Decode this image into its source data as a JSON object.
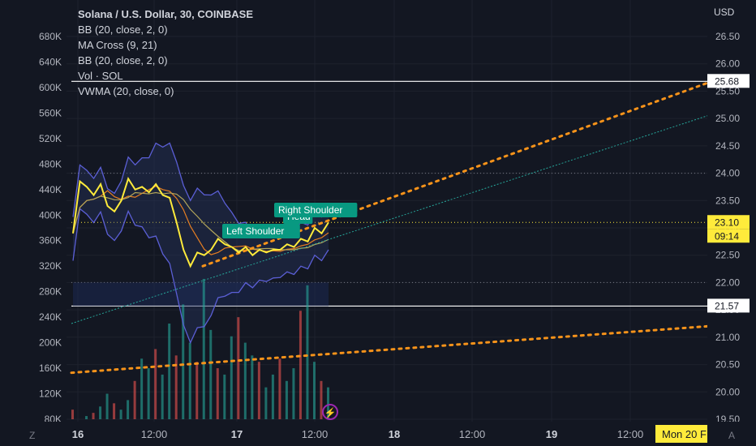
{
  "legend": {
    "title": "Solana / U.S. Dollar, 30, COINBASE",
    "indicators": [
      "BB (20, close, 2, 0)",
      "MA Cross (9, 21)",
      "BB (20, close, 2, 0)",
      "Vol · SOL",
      "VWMA (20, close, 0)"
    ]
  },
  "price_axis": {
    "currency": "USD",
    "ticks": [
      "26.50",
      "26.00",
      "25.50",
      "25.00",
      "24.50",
      "24.00",
      "23.50",
      "23.00",
      "22.50",
      "22.00",
      "21.50",
      "21.00",
      "20.50",
      "20.00",
      "19.50"
    ],
    "resistance_label": "25.68",
    "current_price_label": "23.10",
    "countdown_label": "09:14",
    "support_label": "21.57"
  },
  "volume_axis": {
    "ticks": [
      "680K",
      "640K",
      "600K",
      "560K",
      "520K",
      "480K",
      "440K",
      "400K",
      "360K",
      "320K",
      "280K",
      "240K",
      "200K",
      "160K",
      "120K",
      "80K"
    ]
  },
  "time_axis": {
    "ticks": [
      "16",
      "12:00",
      "17",
      "12:00",
      "18",
      "12:00",
      "19",
      "12:00"
    ],
    "current_date_label": "Mon 20 F"
  },
  "annotations": {
    "left_shoulder": "Left Shoulder",
    "right_shoulder": "Right Shoulder",
    "head": "Head"
  },
  "bottom_icons": {
    "left": "Z",
    "right": "A"
  },
  "colors": {
    "background": "#131722",
    "price_line": "#ffeb3b",
    "bollinger": "#5b5fd6",
    "trend_dotted": "#f7931a",
    "annotation": "#089981",
    "volume_up": "#26a69a",
    "volume_down": "#ef5350"
  },
  "chart_data": {
    "type": "line",
    "symbol": "SOLUSD",
    "price": [
      22.9,
      23.85,
      23.75,
      23.6,
      23.8,
      23.4,
      23.3,
      23.5,
      23.9,
      23.7,
      23.75,
      23.65,
      23.8,
      23.6,
      23.55,
      23.1,
      22.6,
      22.3,
      22.55,
      22.5,
      22.6,
      22.8,
      22.7,
      22.65,
      22.55,
      22.65,
      22.5,
      22.6,
      22.55,
      22.6,
      22.6,
      22.7,
      22.65,
      22.8,
      22.75,
      23.0,
      22.9,
      23.1
    ],
    "volume": [
      95,
      80,
      85,
      90,
      100,
      120,
      105,
      95,
      110,
      140,
      175,
      160,
      190,
      150,
      230,
      180,
      260,
      200,
      170,
      300,
      220,
      160,
      150,
      210,
      240,
      200,
      180,
      170,
      130,
      150,
      175,
      140,
      160,
      250,
      290,
      170,
      140,
      130
    ],
    "resistance": 25.68,
    "current": 23.1,
    "support": 21.57
  }
}
